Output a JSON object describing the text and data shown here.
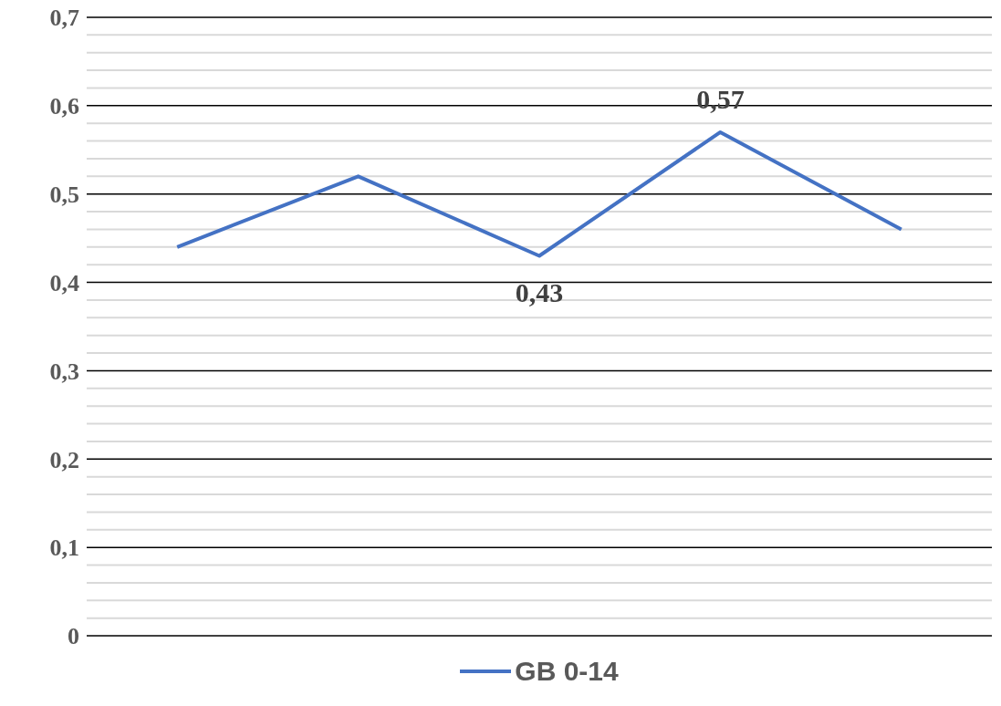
{
  "chart_data": {
    "type": "line",
    "categories": [
      null,
      null,
      null,
      null,
      null
    ],
    "series": [
      {
        "name": "GB 0-14",
        "color": "#4472c4",
        "values": [
          0.44,
          0.52,
          0.43,
          0.57,
          0.46
        ],
        "value_labels": [
          null,
          null,
          "0,43",
          "0,57",
          null
        ]
      }
    ],
    "ylim": [
      0,
      0.7
    ],
    "yticks": [
      {
        "value": 0,
        "label": "0"
      },
      {
        "value": 0.02,
        "label": null
      },
      {
        "value": 0.04,
        "label": null
      },
      {
        "value": 0.06,
        "label": null
      },
      {
        "value": 0.08,
        "label": null
      },
      {
        "value": 0.1,
        "label": "0,1"
      },
      {
        "value": 0.12,
        "label": null
      },
      {
        "value": 0.14,
        "label": null
      },
      {
        "value": 0.16,
        "label": null
      },
      {
        "value": 0.18,
        "label": null
      },
      {
        "value": 0.2,
        "label": "0,2"
      },
      {
        "value": 0.22,
        "label": null
      },
      {
        "value": 0.24,
        "label": null
      },
      {
        "value": 0.26,
        "label": null
      },
      {
        "value": 0.28,
        "label": null
      },
      {
        "value": 0.3,
        "label": "0,3"
      },
      {
        "value": 0.32,
        "label": null
      },
      {
        "value": 0.34,
        "label": null
      },
      {
        "value": 0.36,
        "label": null
      },
      {
        "value": 0.38,
        "label": null
      },
      {
        "value": 0.4,
        "label": "0,4"
      },
      {
        "value": 0.42,
        "label": null
      },
      {
        "value": 0.44,
        "label": null
      },
      {
        "value": 0.46,
        "label": null
      },
      {
        "value": 0.48,
        "label": null
      },
      {
        "value": 0.5,
        "label": "0,5"
      },
      {
        "value": 0.52,
        "label": null
      },
      {
        "value": 0.54,
        "label": null
      },
      {
        "value": 0.56,
        "label": null
      },
      {
        "value": 0.58,
        "label": null
      },
      {
        "value": 0.6,
        "label": "0,6"
      },
      {
        "value": 0.62,
        "label": null
      },
      {
        "value": 0.64,
        "label": null
      },
      {
        "value": 0.66,
        "label": null
      },
      {
        "value": 0.68,
        "label": null
      },
      {
        "value": 0.7,
        "label": "0,7"
      }
    ],
    "grid": "y",
    "legend": "bottom",
    "marker": "none",
    "line_style": "solid"
  }
}
